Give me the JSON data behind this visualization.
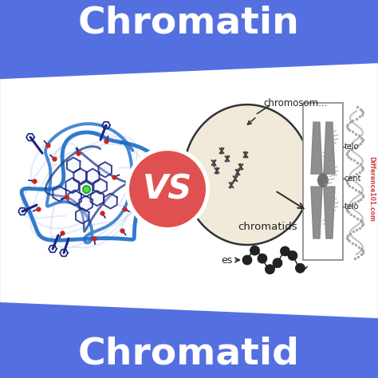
{
  "title_top": "Chromatin",
  "title_bottom": "Chromatid",
  "vs_text": "VS",
  "label_chromatids": "chromatids",
  "label_es": "es",
  "label_chromosome": "chromosom...",
  "label_telo": "telo",
  "label_cent": "cent",
  "watermark": "Difference101.com",
  "bg_blue": "#5470e0",
  "white_area_color": "#ffffff",
  "vs_circle_color": "#e05050",
  "vs_ring_color": "#ffffff",
  "title_color": "#ffffff",
  "title_fontsize": 34,
  "vs_fontsize": 30,
  "nucleus_fill": "#f0e8d8",
  "nucleus_edge": "#555555",
  "chromosome_color": "#808080",
  "label_color": "#222222",
  "dna_blue_main": "#1a6cc8",
  "dna_blue_dark": "#1a237e",
  "dna_blue_light": "#90b8e8",
  "dna_red": "#cc2222",
  "dna_green": "#22aa22",
  "watermark_color": "#cc2222"
}
